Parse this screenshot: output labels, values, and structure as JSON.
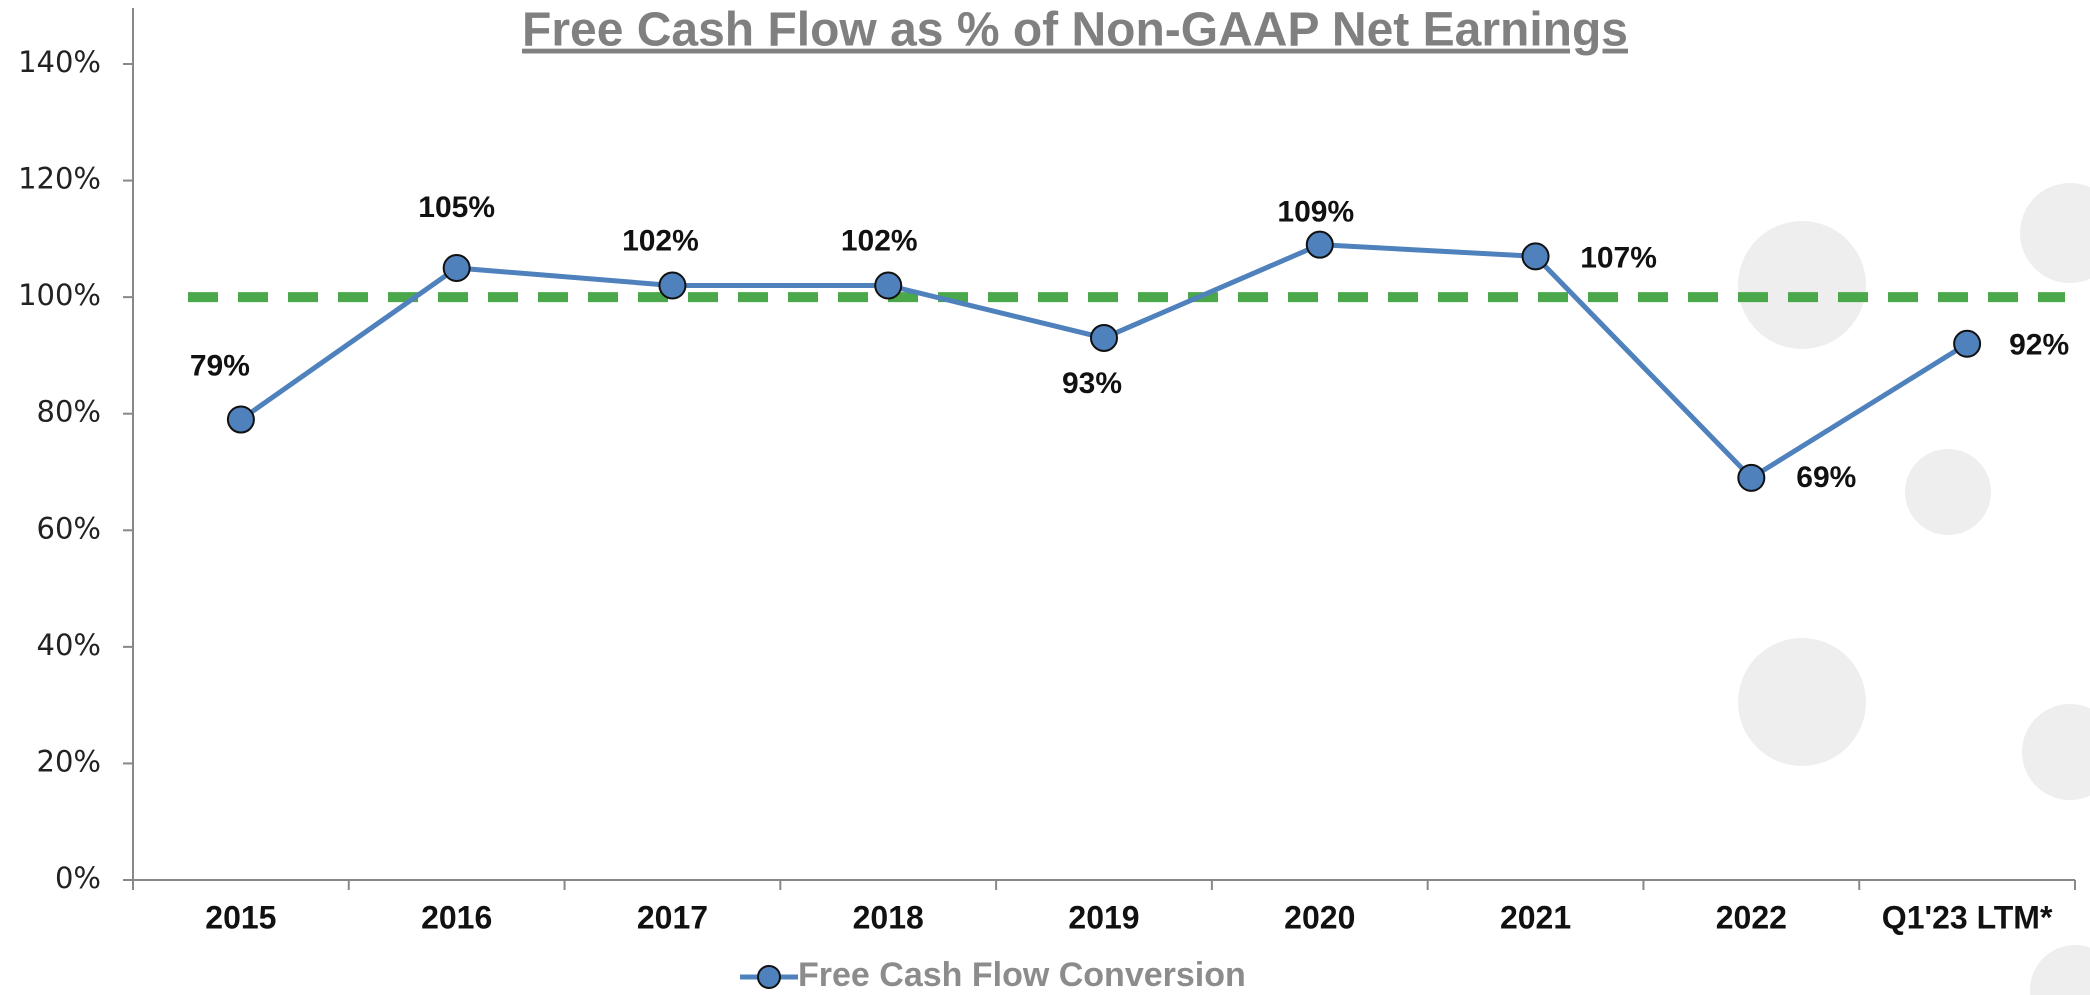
{
  "chart_data": {
    "type": "line",
    "title": "Free Cash Flow as % of Non-GAAP Net Earnings",
    "categories": [
      "2015",
      "2016",
      "2017",
      "2018",
      "2019",
      "2020",
      "2021",
      "2022",
      "Q1'23 LTM*"
    ],
    "series": [
      {
        "name": "Free Cash Flow Conversion",
        "color": "#4f81bd",
        "values": [
          79,
          105,
          102,
          102,
          93,
          109,
          107,
          69,
          92
        ],
        "value_labels": [
          "79%",
          "105%",
          "102%",
          "102%",
          "93%",
          "109%",
          "107%",
          "69%",
          "92%"
        ]
      }
    ],
    "reference_line": {
      "value": 100,
      "color": "#4aa84a"
    },
    "ylim": [
      0,
      140
    ],
    "yticks": [
      {
        "value": 0,
        "label": "0%"
      },
      {
        "value": 20,
        "label": "20%"
      },
      {
        "value": 40,
        "label": "40%"
      },
      {
        "value": 60,
        "label": "60%"
      },
      {
        "value": 80,
        "label": "80%"
      },
      {
        "value": 100,
        "label": "100%"
      },
      {
        "value": 120,
        "label": "120%"
      },
      {
        "value": 140,
        "label": "140%"
      }
    ],
    "legend": "bottom"
  }
}
